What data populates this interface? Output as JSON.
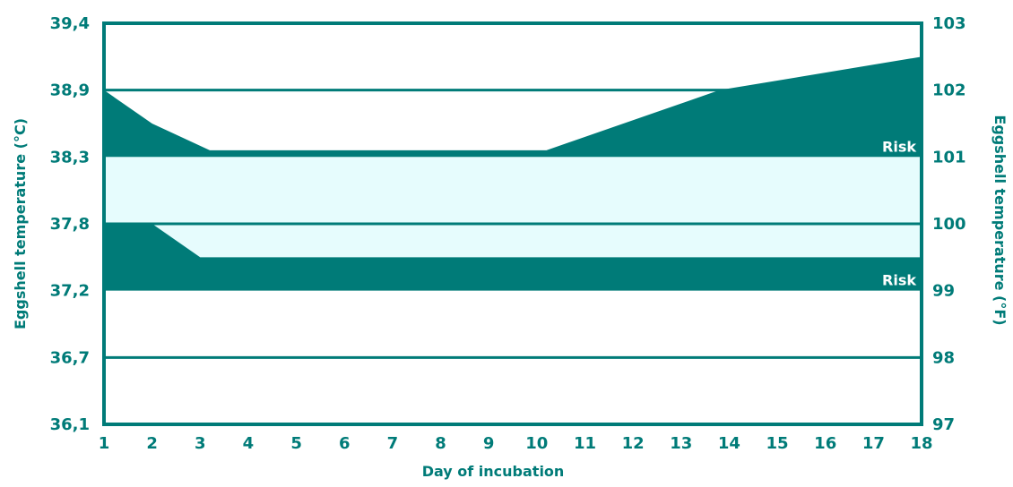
{
  "chart_data": {
    "type": "area",
    "title": "",
    "xlabel": "Day of incubation",
    "ylabel_left": "Eggshell temperature (°C)",
    "ylabel_right": "Eggshell temperature (°F)",
    "x_ticks": [
      "1",
      "2",
      "3",
      "4",
      "5",
      "6",
      "7",
      "8",
      "9",
      "10",
      "11",
      "12",
      "13",
      "14",
      "15",
      "16",
      "17",
      "18"
    ],
    "xlim": [
      1,
      18
    ],
    "y_left_ticks": [
      "39,4",
      "38,9",
      "38,3",
      "37,8",
      "37,2",
      "36,7",
      "36,1"
    ],
    "y_right_ticks": [
      "103",
      "102",
      "101",
      "100",
      "99",
      "98",
      "97"
    ],
    "ylim_f": [
      97,
      103
    ],
    "grid_f": [
      98,
      100,
      102
    ],
    "bands": [
      {
        "name": "upper-risk",
        "label": "Risk",
        "lower_f": 101,
        "upper": [
          [
            1,
            102
          ],
          [
            2,
            101.5
          ],
          [
            3.2,
            101.1
          ],
          [
            10.2,
            101.1
          ],
          [
            13.8,
            102
          ],
          [
            18,
            102.5
          ]
        ]
      },
      {
        "name": "optimal",
        "label": "",
        "lower_f": 99.5,
        "upper_f": 101
      },
      {
        "name": "lower-risk",
        "label": "Risk",
        "lower_f": 99,
        "upper": [
          [
            1,
            100
          ],
          [
            2,
            100
          ],
          [
            3,
            99.5
          ],
          [
            18,
            99.5
          ]
        ]
      }
    ],
    "colors": {
      "risk": "#007b78",
      "optimal": "#e6fcfd",
      "axis": "#007b78",
      "text": "#007b78"
    }
  }
}
